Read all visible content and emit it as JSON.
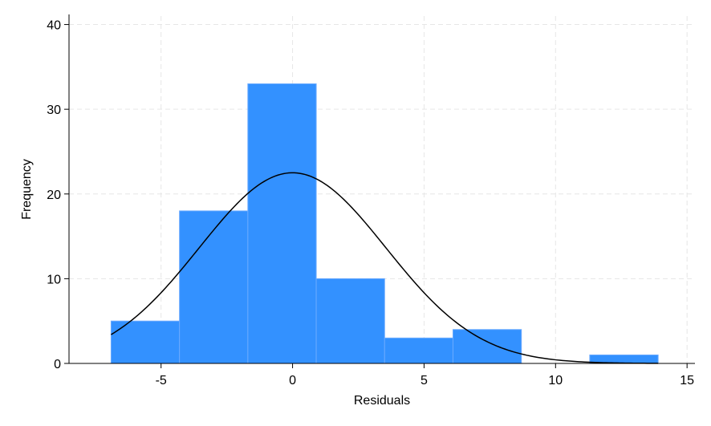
{
  "chart_data": {
    "type": "bar",
    "subtype": "histogram",
    "title": "",
    "xlabel": "Residuals",
    "ylabel": "Frequency",
    "xlim": [
      -8.5,
      15.3
    ],
    "ylim": [
      0,
      41
    ],
    "x_ticks": [
      -5,
      0,
      5,
      10,
      15
    ],
    "x_tick_labels": [
      "-5",
      "0",
      "5",
      "10",
      "15"
    ],
    "y_ticks": [
      0,
      10,
      20,
      30,
      40
    ],
    "y_tick_labels": [
      "0",
      "10",
      "20",
      "30",
      "40"
    ],
    "grid": true,
    "bar_color": "#3391ff",
    "bins": [
      {
        "start": -6.9,
        "end": -4.3,
        "count": 5
      },
      {
        "start": -4.3,
        "end": -1.7,
        "count": 18
      },
      {
        "start": -1.7,
        "end": 0.9,
        "count": 33
      },
      {
        "start": 0.9,
        "end": 3.5,
        "count": 10
      },
      {
        "start": 3.5,
        "end": 6.1,
        "count": 3
      },
      {
        "start": 6.1,
        "end": 8.7,
        "count": 4
      },
      {
        "start": 8.7,
        "end": 11.3,
        "count": 0
      },
      {
        "start": 11.3,
        "end": 13.9,
        "count": 1
      }
    ],
    "normal_curve": {
      "mean": 0,
      "sd": 3.55,
      "peak": 22.5,
      "x_range": [
        -6.9,
        13.9
      ],
      "color": "#000000"
    }
  }
}
